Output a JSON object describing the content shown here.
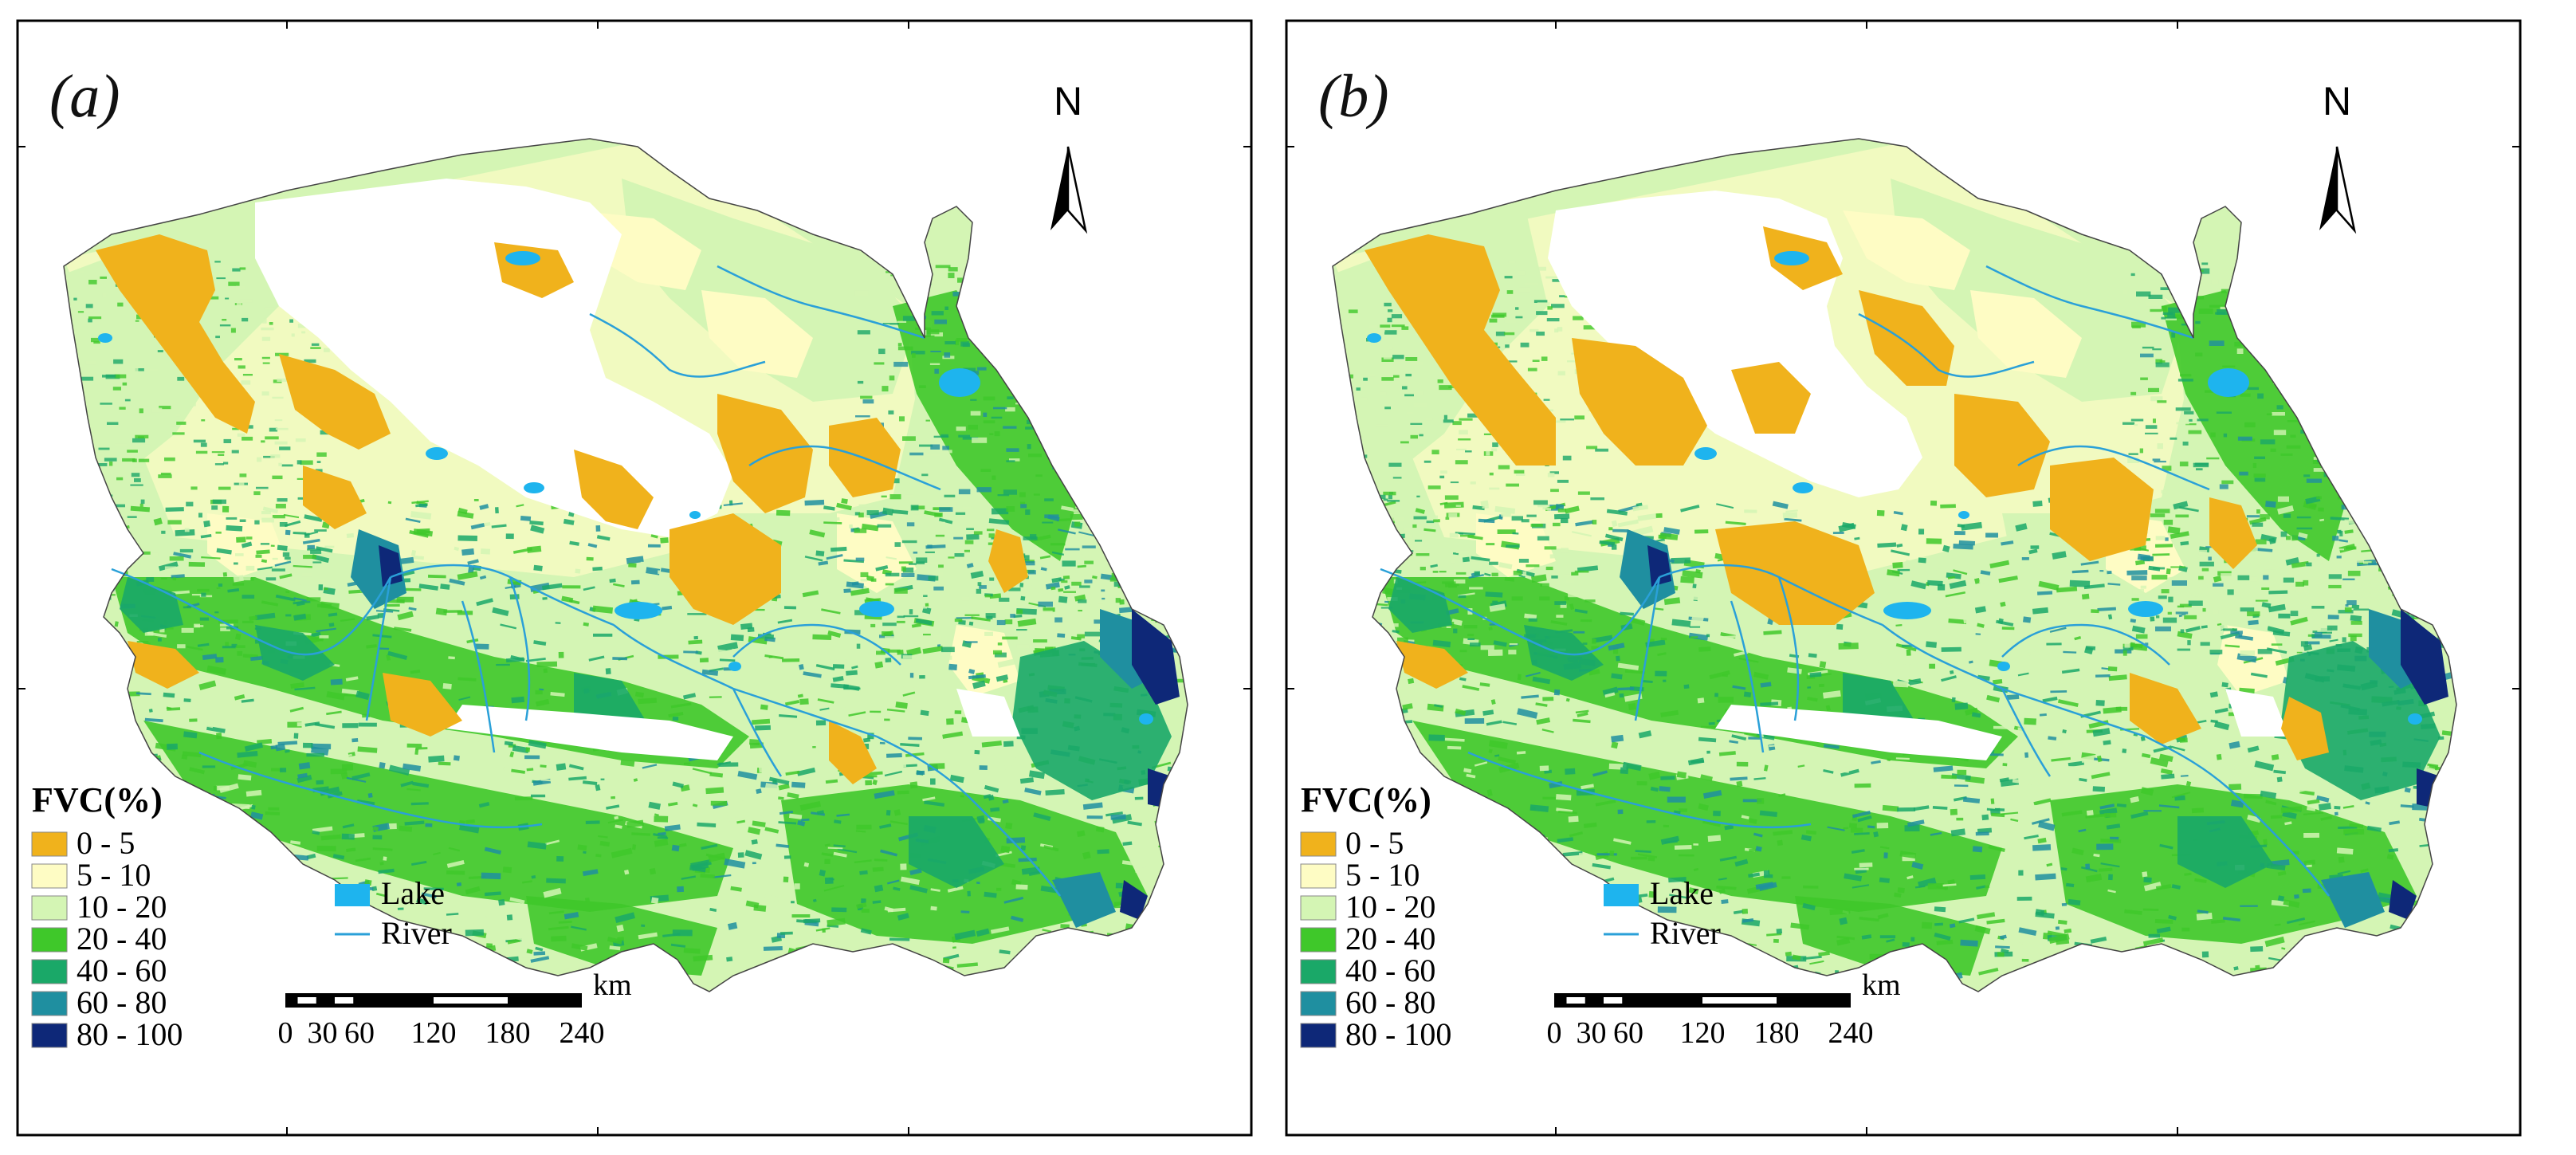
{
  "colors": {
    "c0_5": "#F0B21C",
    "c5_10": "#FEFCC4",
    "c10_20": "#D4F5B4",
    "c20_40": "#3FC82A",
    "c40_60": "#1AA868",
    "c60_80": "#1F8FA0",
    "c80_100": "#0E2878",
    "lake": "#1EB4EE",
    "river": "#2AA0D8",
    "background": "#FFFFFF",
    "frame": "#000000"
  },
  "panels": [
    {
      "id": "a",
      "label": "(a)",
      "variant": "a"
    },
    {
      "id": "b",
      "label": "(b)",
      "variant": "b"
    }
  ],
  "north_arrow": {
    "letter": "N",
    "icon": "north-arrow-icon"
  },
  "legend": {
    "title": "FVC(%)",
    "classes": [
      {
        "label": "0 - 5",
        "color": "#F0B21C"
      },
      {
        "label": "5 - 10",
        "color": "#FEFCC4"
      },
      {
        "label": "10 - 20",
        "color": "#D4F5B4"
      },
      {
        "label": "20 - 40",
        "color": "#3FC82A"
      },
      {
        "label": "40 - 60",
        "color": "#1AA868"
      },
      {
        "label": "60 - 80",
        "color": "#1F8FA0"
      },
      {
        "label": "80 - 100",
        "color": "#0E2878"
      }
    ],
    "lake_label": "Lake",
    "river_label": "River"
  },
  "scale_bar": {
    "unit": "km",
    "ticks": [
      "0",
      "30",
      "60",
      "120",
      "180",
      "240"
    ]
  }
}
